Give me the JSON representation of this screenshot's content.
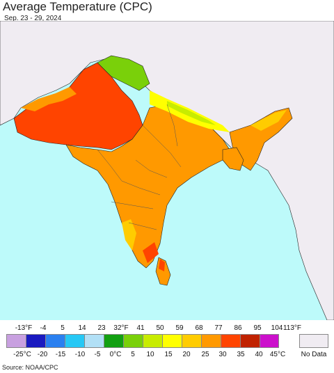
{
  "title": "Average Temperature (CPC)",
  "date_range": "Sep. 23 - 29, 2024",
  "legend": {
    "fahrenheit_labels": [
      "-13°F",
      "-4",
      "5",
      "14",
      "23",
      "32°F",
      "41",
      "50",
      "59",
      "68",
      "77",
      "86",
      "95",
      "104",
      "113°F"
    ],
    "celsius_labels": [
      "-25°C",
      "-20",
      "-15",
      "-10",
      "-5",
      "0°C",
      "5",
      "10",
      "15",
      "20",
      "25",
      "30",
      "35",
      "40",
      "45°C"
    ],
    "colors": [
      "#c8a0e0",
      "#6a3f9e",
      "#1a1ac0",
      "#2a80f0",
      "#26c8f5",
      "#b2e0f6",
      "#12a012",
      "#7ad00a",
      "#c8ec00",
      "#ffff00",
      "#ffcc00",
      "#ff9900",
      "#ff4400",
      "#c02200",
      "#cc10cc",
      "#ee80cc"
    ],
    "no_data_label": "No Data",
    "no_data_color": "#f0ecf2"
  },
  "map": {
    "ocean_color": "#bdfafa",
    "land_no_data_color": "#f0ecf2",
    "border_color": "#222222"
  },
  "source": "Source: NOAA/CPC"
}
